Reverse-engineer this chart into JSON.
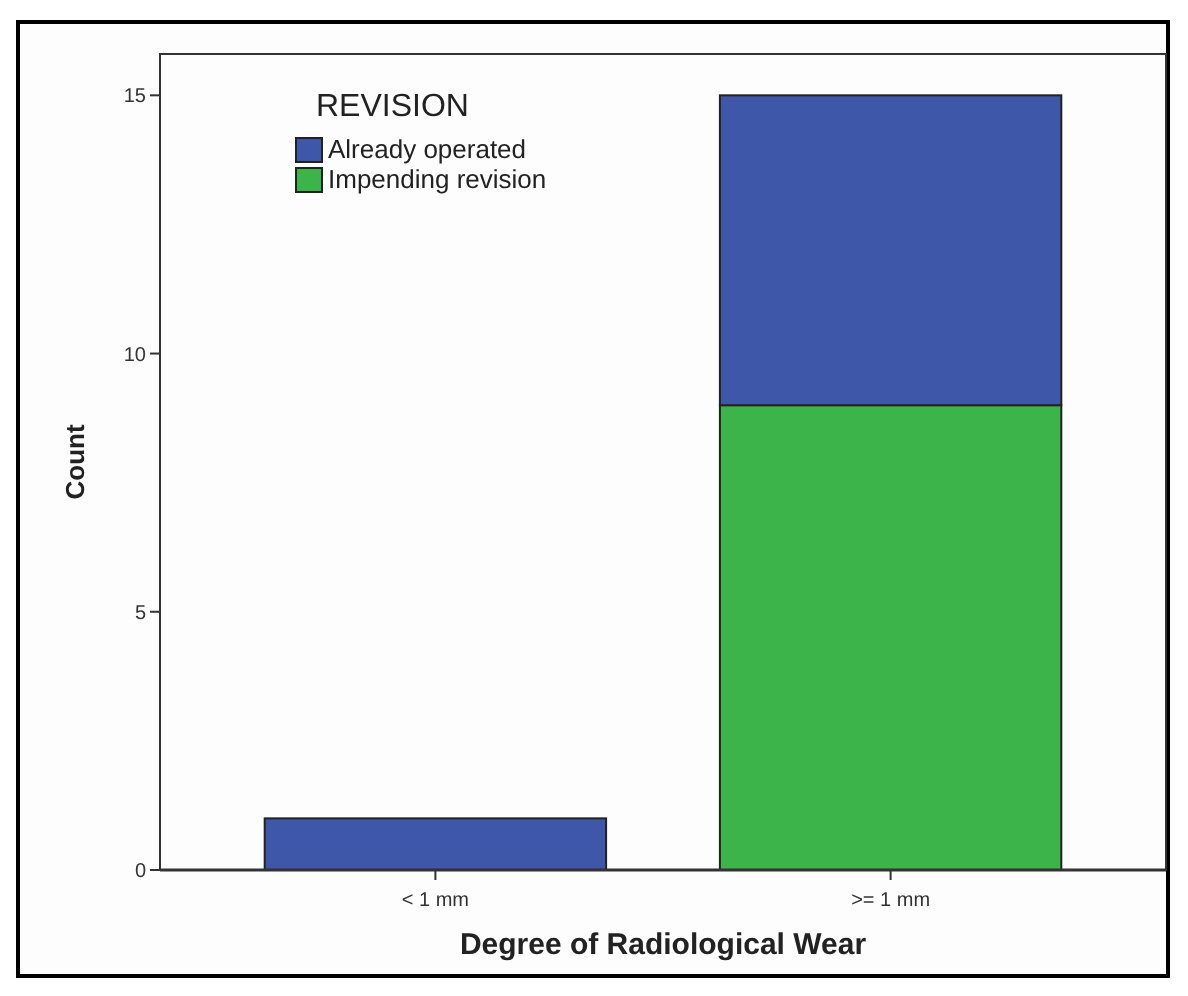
{
  "chart_data": {
    "type": "bar",
    "stacked": true,
    "xlabel": "Degree of Radiological Wear",
    "ylabel": "Count",
    "legend_title": "REVISION",
    "legend": "top left",
    "categories": [
      "< 1 mm",
      ">= 1 mm"
    ],
    "series": [
      {
        "name": "Impending revision",
        "color": "#3cb44a",
        "values": [
          0,
          9
        ]
      },
      {
        "name": "Already operated",
        "color": "#3f57a8",
        "values": [
          1,
          6
        ]
      }
    ],
    "ylim": [
      0,
      15.8
    ],
    "yticks": [
      0,
      5,
      10,
      15
    ]
  }
}
